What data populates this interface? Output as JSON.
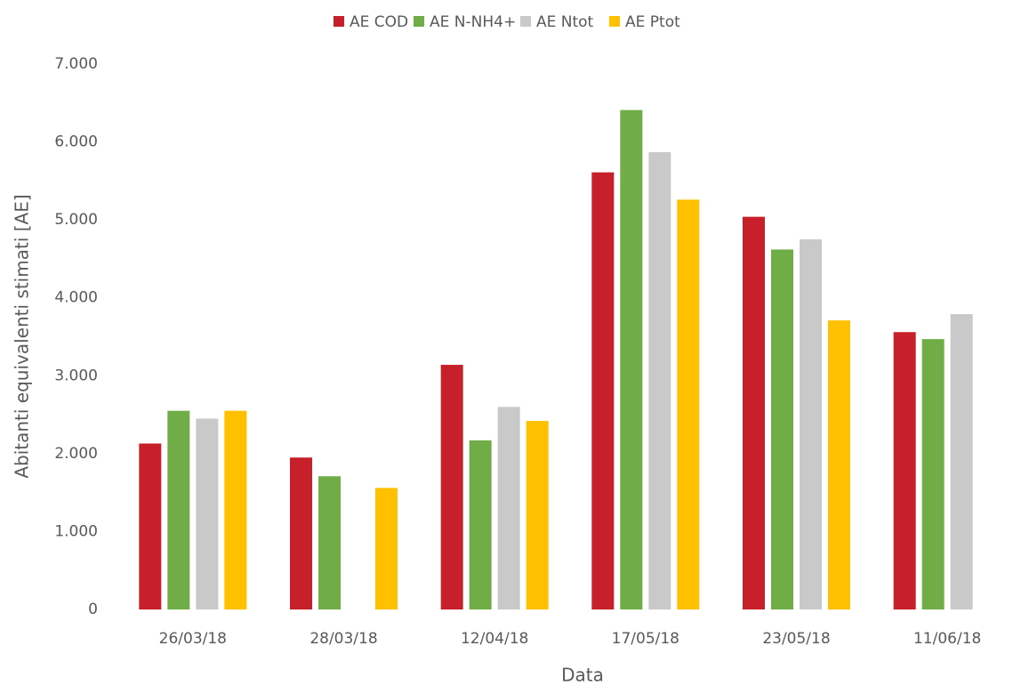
{
  "chart_data": {
    "type": "bar",
    "x_label": "Data",
    "y_label": "Abitanti equivalenti stimati [AE]",
    "categories": [
      "26/03/18",
      "28/03/18",
      "12/04/18",
      "17/05/18",
      "23/05/18",
      "11/06/18"
    ],
    "series": [
      {
        "name": "AE COD",
        "color": "#c8202b",
        "values": [
          2130,
          1950,
          3140,
          5610,
          5040,
          3560
        ]
      },
      {
        "name": "AE N-NH4+",
        "color": "#70ad47",
        "values": [
          2550,
          1710,
          2170,
          6410,
          4620,
          3470
        ]
      },
      {
        "name": "AE Ntot",
        "color": "#c9c9c9",
        "values": [
          2450,
          null,
          2600,
          5870,
          4750,
          3790
        ]
      },
      {
        "name": "AE Ptot",
        "color": "#ffc000",
        "values": [
          2550,
          1560,
          2420,
          5260,
          3710,
          null
        ]
      }
    ],
    "ylim": [
      0,
      7000
    ],
    "yticks": [
      0,
      {
        "value": 1000,
        "label": "1.000"
      },
      {
        "value": 2000,
        "label": "2.000"
      },
      {
        "value": 3000,
        "label": "3.000"
      },
      {
        "value": 4000,
        "label": "4.000"
      },
      {
        "value": 5000,
        "label": "5.000"
      },
      {
        "value": 6000,
        "label": "6.000"
      },
      {
        "value": 7000,
        "label": "7.000"
      }
    ],
    "grid": false,
    "legend": "top"
  }
}
